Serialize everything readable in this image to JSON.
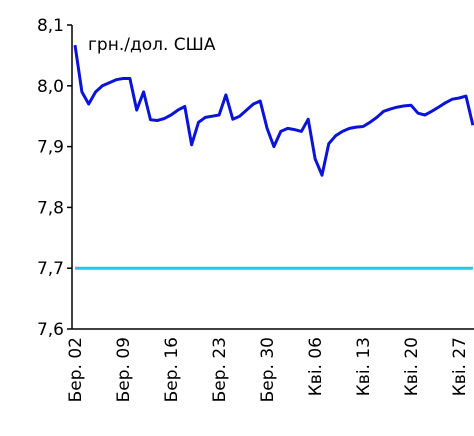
{
  "chart_data": {
    "type": "line",
    "annotation": "грн./дол. США",
    "categories": [
      "Бер. 02",
      null,
      null,
      null,
      null,
      null,
      null,
      "Бер. 09",
      null,
      null,
      null,
      null,
      null,
      null,
      "Бер. 16",
      null,
      null,
      null,
      null,
      null,
      null,
      "Бер. 23",
      null,
      null,
      null,
      null,
      null,
      null,
      "Бер. 30",
      null,
      null,
      null,
      null,
      null,
      null,
      "Кві. 06",
      null,
      null,
      null,
      null,
      null,
      null,
      "Кві. 13",
      null,
      null,
      null,
      null,
      null,
      null,
      "Кві. 20",
      null,
      null,
      null,
      null,
      null,
      null,
      "Кві. 27",
      null,
      null
    ],
    "series": [
      {
        "color": "#0a14d8",
        "values": [
          8.067,
          7.99,
          7.97,
          7.99,
          8.0,
          8.005,
          8.01,
          8.012,
          8.012,
          7.96,
          7.99,
          7.944,
          7.943,
          7.946,
          7.952,
          7.96,
          7.966,
          7.903,
          7.94,
          7.948,
          7.95,
          7.952,
          7.985,
          7.945,
          7.95,
          7.96,
          7.97,
          7.975,
          7.93,
          7.9,
          7.925,
          7.93,
          7.928,
          7.925,
          7.945,
          7.88,
          7.853,
          7.905,
          7.918,
          7.925,
          7.93,
          7.932,
          7.933,
          7.94,
          7.948,
          7.958,
          7.962,
          7.965,
          7.967,
          7.968,
          7.955,
          7.952,
          7.958,
          7.965,
          7.972,
          7.978,
          7.98,
          7.983,
          7.935
        ]
      },
      {
        "color": "#1ec8f0",
        "values": [
          7.7,
          7.7,
          7.7,
          7.7,
          7.7,
          7.7,
          7.7,
          7.7,
          7.7,
          7.7,
          7.7,
          7.7,
          7.7,
          7.7,
          7.7,
          7.7,
          7.7,
          7.7,
          7.7,
          7.7,
          7.7,
          7.7,
          7.7,
          7.7,
          7.7,
          7.7,
          7.7,
          7.7,
          7.7,
          7.7,
          7.7,
          7.7,
          7.7,
          7.7,
          7.7,
          7.7,
          7.7,
          7.7,
          7.7,
          7.7,
          7.7,
          7.7,
          7.7,
          7.7,
          7.7,
          7.7,
          7.7,
          7.7,
          7.7,
          7.7,
          7.7,
          7.7,
          7.7,
          7.7,
          7.7,
          7.7,
          7.7,
          7.7,
          7.7
        ]
      }
    ],
    "ylim": [
      7.6,
      8.1
    ],
    "yticks": [
      {
        "value": 7.6,
        "label": "7,6"
      },
      {
        "value": 7.7,
        "label": "7,7"
      },
      {
        "value": 7.8,
        "label": "7,8"
      },
      {
        "value": 7.9,
        "label": "7,9"
      },
      {
        "value": 8.0,
        "label": "8,0"
      },
      {
        "value": 8.1,
        "label": "8,1"
      }
    ],
    "grid": false
  }
}
